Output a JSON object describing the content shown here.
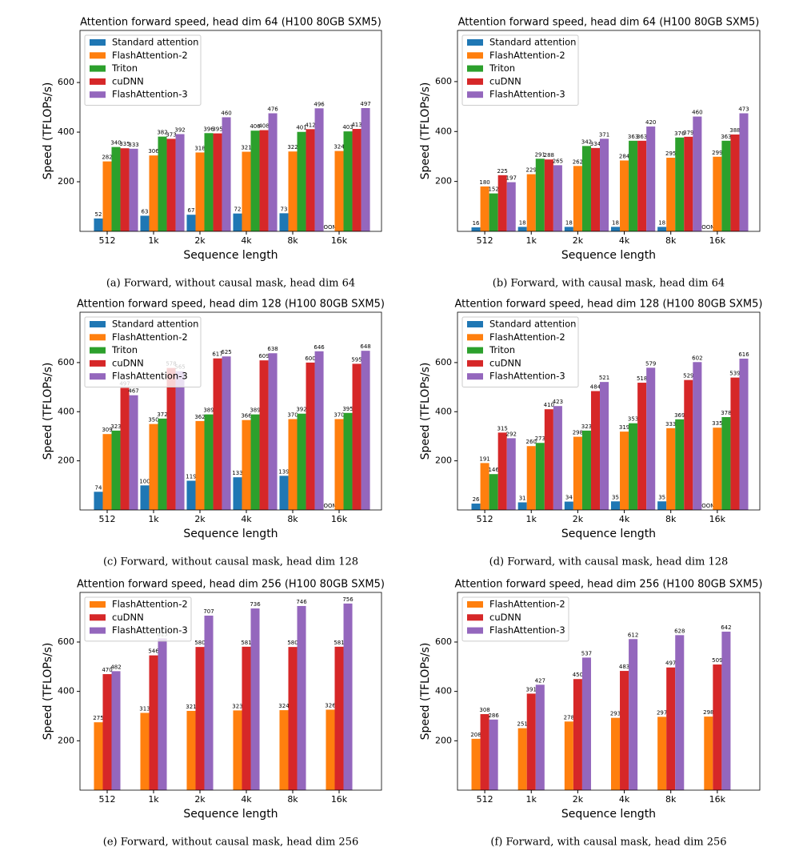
{
  "chart_data": [
    {
      "type": "bar",
      "title": "Attention forward speed, head dim 64 (H100 80GB SXM5)",
      "caption": "(a) Forward, without causal mask, head dim 64",
      "x_label": "Sequence length",
      "y_label": "Speed (TFLOPs/s)",
      "categories": [
        "512",
        "1k",
        "2k",
        "4k",
        "8k",
        "16k"
      ],
      "ylim": [
        0,
        810
      ],
      "yticks": [
        200,
        400,
        600
      ],
      "legend": "upper left",
      "series": [
        {
          "name": "Standard attention",
          "color": "#1f77b4",
          "values": [
            52,
            63,
            67,
            72,
            73,
            null
          ],
          "value_labels": [
            "52",
            "63",
            "67",
            "72",
            "73",
            "OOM"
          ]
        },
        {
          "name": "FlashAttention-2",
          "color": "#ff7f0e",
          "values": [
            282,
            306,
            318,
            321,
            322,
            324
          ]
        },
        {
          "name": "Triton",
          "color": "#2ca02c",
          "values": [
            340,
            382,
            396,
            406,
            401,
            403
          ]
        },
        {
          "name": "cuDNN",
          "color": "#d62728",
          "values": [
            335,
            373,
            395,
            408,
            412,
            413
          ]
        },
        {
          "name": "FlashAttention-3",
          "color": "#9467bd",
          "values": [
            333,
            392,
            460,
            476,
            496,
            497
          ]
        }
      ]
    },
    {
      "type": "bar",
      "title": "Attention forward speed, head dim 64 (H100 80GB SXM5)",
      "caption": "(b) Forward, with causal mask, head dim 64",
      "x_label": "Sequence length",
      "y_label": "Speed (TFLOPs/s)",
      "categories": [
        "512",
        "1k",
        "2k",
        "4k",
        "8k",
        "16k"
      ],
      "ylim": [
        0,
        805
      ],
      "yticks": [
        200,
        400,
        600
      ],
      "legend": "upper left",
      "series": [
        {
          "name": "Standard attention",
          "color": "#1f77b4",
          "values": [
            16,
            18,
            18,
            18,
            18,
            null
          ],
          "value_labels": [
            "16",
            "18",
            "18",
            "18",
            "18",
            "OOM"
          ]
        },
        {
          "name": "FlashAttention-2",
          "color": "#ff7f0e",
          "values": [
            180,
            229,
            262,
            284,
            295,
            299
          ]
        },
        {
          "name": "Triton",
          "color": "#2ca02c",
          "values": [
            152,
            291,
            342,
            363,
            376,
            363
          ]
        },
        {
          "name": "cuDNN",
          "color": "#d62728",
          "values": [
            225,
            288,
            334,
            363,
            379,
            388
          ]
        },
        {
          "name": "FlashAttention-3",
          "color": "#9467bd",
          "values": [
            197,
            265,
            371,
            420,
            460,
            473
          ]
        }
      ]
    },
    {
      "type": "bar",
      "title": "Attention forward speed, head dim 128 (H100 80GB SXM5)",
      "caption": "(c) Forward, without causal mask, head dim 128",
      "x_label": "Sequence length",
      "y_label": "Speed (TFLOPs/s)",
      "categories": [
        "512",
        "1k",
        "2k",
        "4k",
        "8k",
        "16k"
      ],
      "ylim": [
        0,
        805
      ],
      "yticks": [
        200,
        400,
        600
      ],
      "legend": "upper left",
      "series": [
        {
          "name": "Standard attention",
          "color": "#1f77b4",
          "values": [
            74,
            100,
            119,
            133,
            139,
            null
          ],
          "value_labels": [
            "74",
            "100",
            "119",
            "133",
            "139",
            "OOM"
          ]
        },
        {
          "name": "FlashAttention-2",
          "color": "#ff7f0e",
          "values": [
            309,
            350,
            362,
            366,
            370,
            370
          ]
        },
        {
          "name": "Triton",
          "color": "#2ca02c",
          "values": [
            323,
            372,
            389,
            389,
            392,
            395
          ]
        },
        {
          "name": "cuDNN",
          "color": "#d62728",
          "values": [
            497,
            578,
            617,
            609,
            600,
            595
          ]
        },
        {
          "name": "FlashAttention-3",
          "color": "#9467bd",
          "values": [
            467,
            565,
            625,
            638,
            646,
            648
          ]
        }
      ]
    },
    {
      "type": "bar",
      "title": "Attention forward speed, head dim 128 (H100 80GB SXM5)",
      "caption": "(d) Forward, with causal mask, head dim 128",
      "x_label": "Sequence length",
      "y_label": "Speed (TFLOPs/s)",
      "categories": [
        "512",
        "1k",
        "2k",
        "4k",
        "8k",
        "16k"
      ],
      "ylim": [
        0,
        805
      ],
      "yticks": [
        200,
        400,
        600
      ],
      "legend": "upper left",
      "series": [
        {
          "name": "Standard attention",
          "color": "#1f77b4",
          "values": [
            26,
            31,
            34,
            35,
            35,
            null
          ],
          "value_labels": [
            "26",
            "31",
            "34",
            "35",
            "35",
            "OOM"
          ]
        },
        {
          "name": "FlashAttention-2",
          "color": "#ff7f0e",
          "values": [
            191,
            260,
            298,
            319,
            333,
            335
          ]
        },
        {
          "name": "Triton",
          "color": "#2ca02c",
          "values": [
            146,
            273,
            323,
            353,
            369,
            378
          ]
        },
        {
          "name": "cuDNN",
          "color": "#d62728",
          "values": [
            315,
            410,
            484,
            518,
            529,
            539
          ]
        },
        {
          "name": "FlashAttention-3",
          "color": "#9467bd",
          "values": [
            292,
            423,
            521,
            579,
            602,
            616
          ]
        }
      ]
    },
    {
      "type": "bar",
      "title": "Attention forward speed, head dim 256 (H100 80GB SXM5)",
      "caption": "(e) Forward, without causal mask, head dim 256",
      "x_label": "Sequence length",
      "y_label": "Speed (TFLOPs/s)",
      "categories": [
        "512",
        "1k",
        "2k",
        "4k",
        "8k",
        "16k"
      ],
      "ylim": [
        0,
        801
      ],
      "yticks": [
        200,
        400,
        600
      ],
      "legend": "upper left",
      "series": [
        {
          "name": "FlashAttention-2",
          "color": "#ff7f0e",
          "values": [
            275,
            313,
            321,
            323,
            324,
            326
          ]
        },
        {
          "name": "cuDNN",
          "color": "#d62728",
          "values": [
            470,
            546,
            580,
            581,
            580,
            581
          ]
        },
        {
          "name": "FlashAttention-3",
          "color": "#9467bd",
          "values": [
            482,
            615,
            707,
            736,
            746,
            756
          ]
        }
      ]
    },
    {
      "type": "bar",
      "title": "Attention forward speed, head dim 256 (H100 80GB SXM5)",
      "caption": "(f) Forward, with causal mask, head dim 256",
      "x_label": "Sequence length",
      "y_label": "Speed (TFLOPs/s)",
      "categories": [
        "512",
        "1k",
        "2k",
        "4k",
        "8k",
        "16k"
      ],
      "ylim": [
        0,
        801
      ],
      "yticks": [
        200,
        400,
        600
      ],
      "legend": "upper left",
      "series": [
        {
          "name": "FlashAttention-2",
          "color": "#ff7f0e",
          "values": [
            208,
            251,
            278,
            293,
            297,
            298
          ]
        },
        {
          "name": "cuDNN",
          "color": "#d62728",
          "values": [
            308,
            391,
            450,
            483,
            497,
            509
          ]
        },
        {
          "name": "FlashAttention-3",
          "color": "#9467bd",
          "values": [
            286,
            427,
            537,
            612,
            628,
            642
          ]
        }
      ]
    }
  ]
}
